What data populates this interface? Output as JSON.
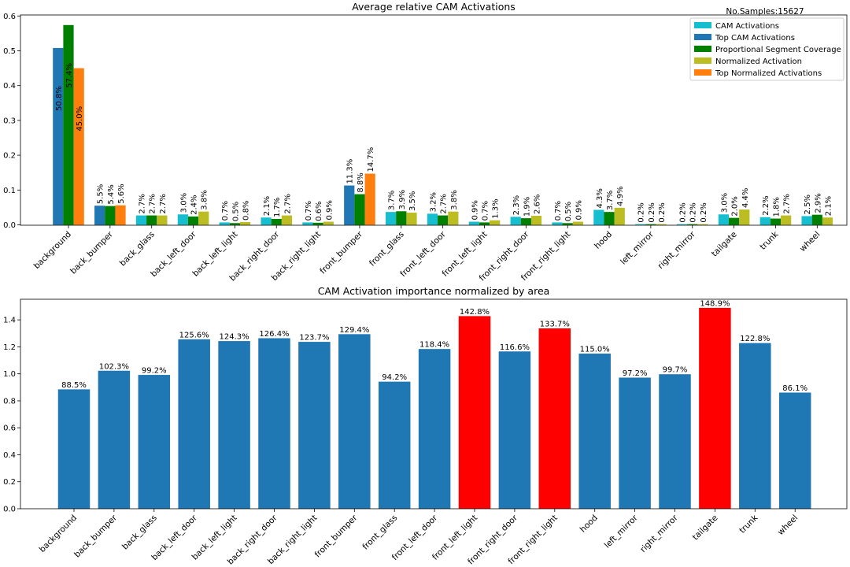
{
  "colors": {
    "cam": "#17becf",
    "top_cam": "#1f77b4",
    "prop": "#008000",
    "norm": "#bcbd22",
    "top_norm": "#ff7f0e",
    "bar_default": "#1f77b4",
    "bar_highlight": "#ff0000"
  },
  "chart_data": [
    {
      "type": "bar",
      "title": "Average relative CAM Activations",
      "annotation": "No.Samples:15627",
      "xlabel": "",
      "ylabel": "",
      "ylim": [
        0,
        0.6
      ],
      "yticks": [
        0.0,
        0.1,
        0.2,
        0.3,
        0.4,
        0.5,
        0.6
      ],
      "ytick_labels": [
        "0.0",
        "0.1",
        "0.2",
        "0.3",
        "0.4",
        "0.5",
        "0.6"
      ],
      "grid": false,
      "legend_position": "top-right",
      "categories": [
        "background",
        "back_bumper",
        "back_glass",
        "back_left_door",
        "back_left_light",
        "back_right_door",
        "back_right_light",
        "front_bumper",
        "front_glass",
        "front_left_door",
        "front_left_light",
        "front_right_door",
        "front_right_light",
        "hood",
        "left_mirror",
        "right_mirror",
        "tailgate",
        "trunk",
        "wheel"
      ],
      "series": [
        {
          "name": "CAM Activations",
          "color_key": "cam",
          "values": [
            null,
            null,
            0.027,
            0.03,
            0.007,
            0.021,
            0.007,
            null,
            0.037,
            0.032,
            0.009,
            0.023,
            0.007,
            0.043,
            0.002,
            0.002,
            0.03,
            0.022,
            0.025
          ],
          "labels": [
            "",
            "",
            "2.7%",
            "3.0%",
            "0.7%",
            "2.1%",
            "0.7%",
            "",
            "3.7%",
            "3.2%",
            "0.9%",
            "2.3%",
            "0.7%",
            "4.3%",
            "0.2%",
            "0.2%",
            "3.0%",
            "2.2%",
            "2.5%"
          ]
        },
        {
          "name": "Top CAM Activations",
          "color_key": "top_cam",
          "values": [
            0.508,
            0.055,
            null,
            null,
            null,
            null,
            null,
            0.113,
            null,
            null,
            null,
            null,
            null,
            null,
            null,
            null,
            null,
            null,
            null
          ],
          "labels": [
            "50.8%",
            "5.5%",
            "",
            "",
            "",
            "",
            "",
            "11.3%",
            "",
            "",
            "",
            "",
            "",
            "",
            "",
            "",
            "",
            "",
            ""
          ]
        },
        {
          "name": "Proportional Segment Coverage",
          "color_key": "prop",
          "values": [
            0.574,
            0.054,
            0.027,
            0.024,
            0.005,
            0.017,
            0.006,
            0.088,
            0.039,
            0.027,
            0.007,
            0.019,
            0.005,
            0.037,
            0.002,
            0.002,
            0.02,
            0.018,
            0.029
          ],
          "labels": [
            "57.4%",
            "5.4%",
            "2.7%",
            "2.4%",
            "0.5%",
            "1.7%",
            "0.6%",
            "8.8%",
            "3.9%",
            "2.7%",
            "0.7%",
            "1.9%",
            "0.5%",
            "3.7%",
            "0.2%",
            "0.2%",
            "2.0%",
            "1.8%",
            "2.9%"
          ]
        },
        {
          "name": "Normalized Activation",
          "color_key": "norm",
          "values": [
            null,
            null,
            0.027,
            0.038,
            0.008,
            0.027,
            0.009,
            null,
            0.035,
            0.038,
            0.013,
            0.026,
            0.009,
            0.049,
            0.002,
            0.002,
            0.044,
            0.027,
            0.021
          ],
          "labels": [
            "",
            "",
            "2.7%",
            "3.8%",
            "0.8%",
            "2.7%",
            "0.9%",
            "",
            "3.5%",
            "3.8%",
            "1.3%",
            "2.6%",
            "0.9%",
            "4.9%",
            "0.2%",
            "0.2%",
            "4.4%",
            "2.7%",
            "2.1%"
          ]
        },
        {
          "name": "Top Normalized Activations",
          "color_key": "top_norm",
          "values": [
            0.45,
            0.056,
            null,
            null,
            null,
            null,
            null,
            0.147,
            null,
            null,
            null,
            null,
            null,
            null,
            null,
            null,
            null,
            null,
            null
          ],
          "labels": [
            "45.0%",
            "5.6%",
            "",
            "",
            "",
            "",
            "",
            "14.7%",
            "",
            "",
            "",
            "",
            "",
            "",
            "",
            "",
            "",
            "",
            ""
          ]
        }
      ]
    },
    {
      "type": "bar",
      "title": "CAM Activation importance normalized by area",
      "xlabel": "",
      "ylabel": "",
      "ylim": [
        0,
        1.55
      ],
      "yticks": [
        0.0,
        0.2,
        0.4,
        0.6,
        0.8,
        1.0,
        1.2,
        1.4
      ],
      "ytick_labels": [
        "0.0",
        "0.2",
        "0.4",
        "0.6",
        "0.8",
        "1.0",
        "1.2",
        "1.4"
      ],
      "grid": false,
      "categories": [
        "background",
        "back_bumper",
        "back_glass",
        "back_left_door",
        "back_left_light",
        "back_right_door",
        "back_right_light",
        "front_bumper",
        "front_glass",
        "front_left_door",
        "front_left_light",
        "front_right_door",
        "front_right_light",
        "hood",
        "left_mirror",
        "right_mirror",
        "tailgate",
        "trunk",
        "wheel"
      ],
      "values": [
        0.885,
        1.023,
        0.992,
        1.256,
        1.243,
        1.264,
        1.237,
        1.294,
        0.942,
        1.184,
        1.428,
        1.166,
        1.337,
        1.15,
        0.972,
        0.997,
        1.489,
        1.228,
        0.861
      ],
      "labels": [
        "88.5%",
        "102.3%",
        "99.2%",
        "125.6%",
        "124.3%",
        "126.4%",
        "123.7%",
        "129.4%",
        "94.2%",
        "118.4%",
        "142.8%",
        "116.6%",
        "133.7%",
        "115.0%",
        "97.2%",
        "99.7%",
        "148.9%",
        "122.8%",
        "86.1%"
      ],
      "highlighted": [
        "front_left_light",
        "front_right_light",
        "tailgate"
      ]
    }
  ]
}
